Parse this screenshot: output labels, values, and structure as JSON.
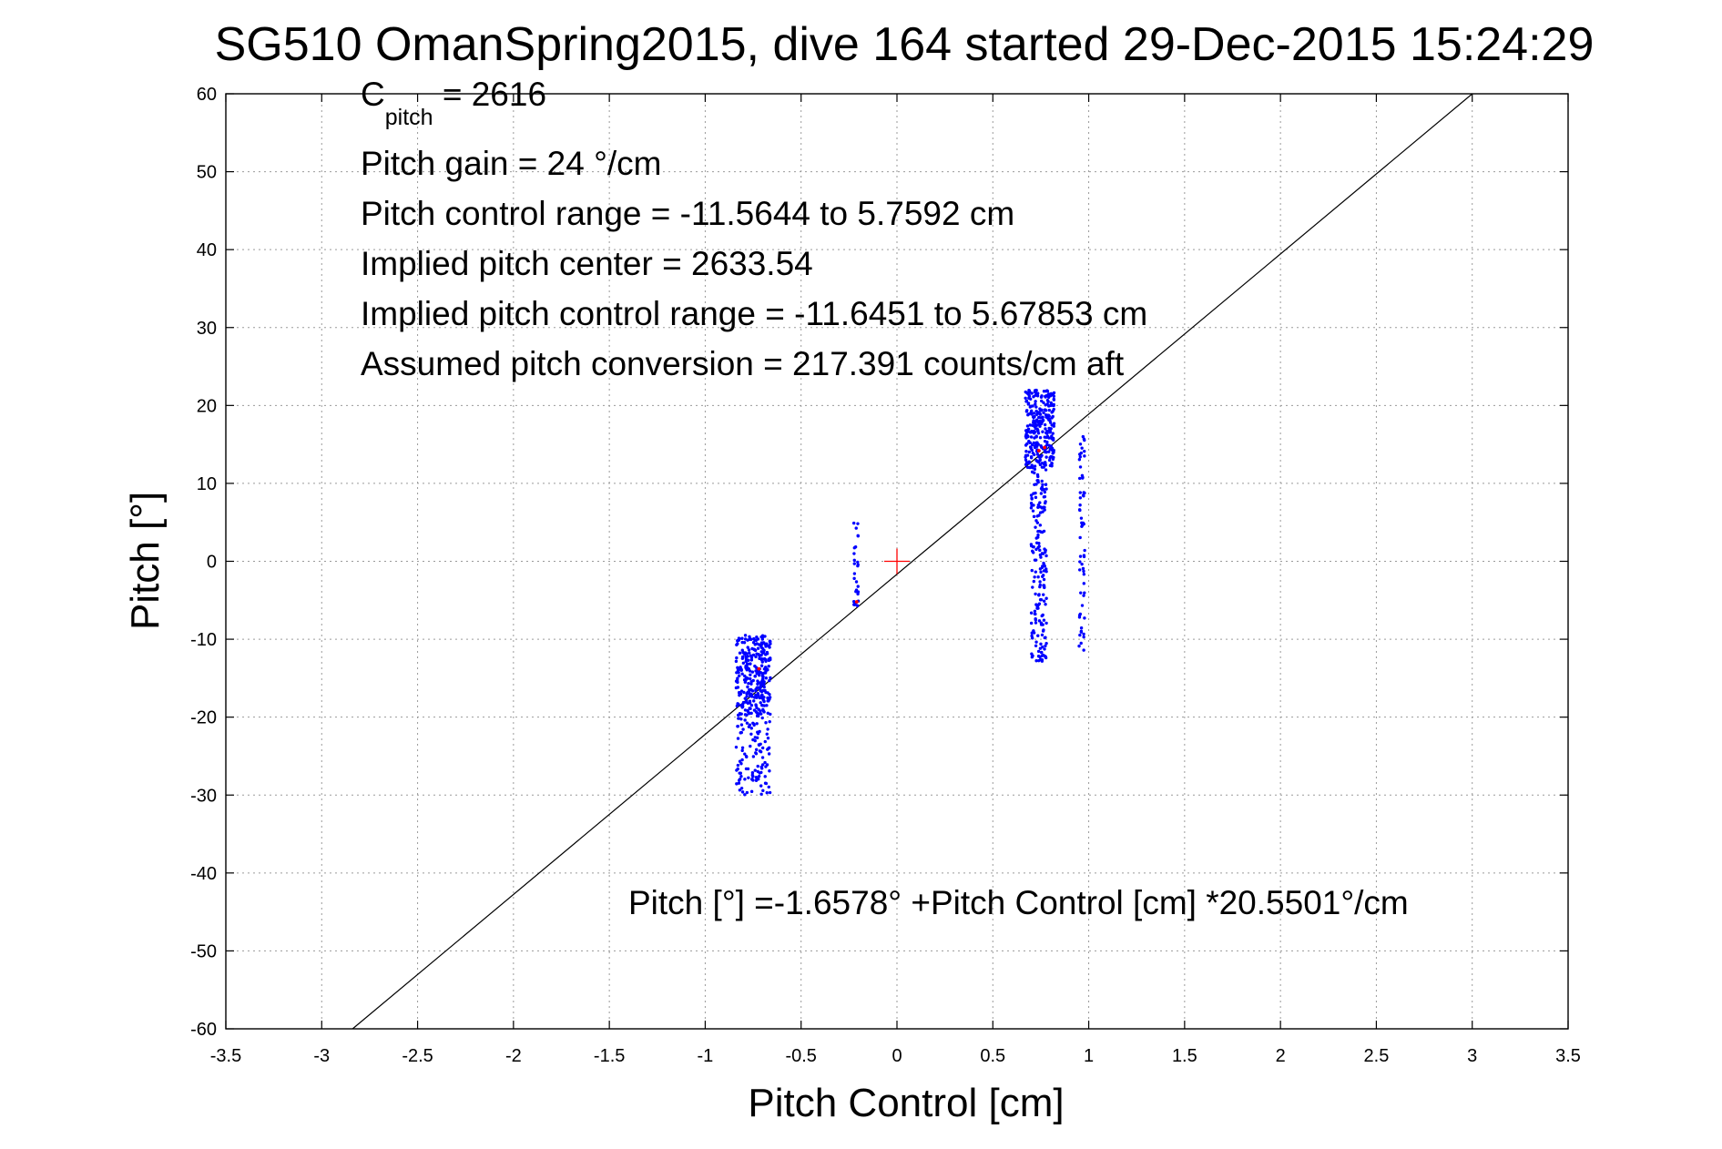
{
  "chart_data": {
    "type": "scatter",
    "title": "SG510 OmanSpring2015, dive 164 started 29-Dec-2015 15:24:29",
    "xlabel": "Pitch Control [cm]",
    "ylabel": "Pitch [°]",
    "xlim": [
      -3.5,
      3.5
    ],
    "ylim": [
      -60,
      60
    ],
    "xticks": [
      -3.5,
      -3,
      -2.5,
      -2,
      -1.5,
      -1,
      -0.5,
      0,
      0.5,
      1,
      1.5,
      2,
      2.5,
      3,
      3.5
    ],
    "xtick_labels": [
      "-3.5",
      "-3",
      "-2.5",
      "-2",
      "-1.5",
      "-1",
      "-0.5",
      "0",
      "0.5",
      "1",
      "1.5",
      "2",
      "2.5",
      "3",
      "3.5"
    ],
    "yticks": [
      60,
      50,
      40,
      30,
      20,
      10,
      0,
      -10,
      -20,
      -30,
      -40,
      -50,
      -60
    ],
    "ytick_labels": [
      "60",
      "50",
      "40",
      "30",
      "20",
      "10",
      "0",
      "-10",
      "-20",
      "-30",
      "-40",
      "-50",
      "-60"
    ],
    "grid": true,
    "colors": {
      "points": "#0000ff",
      "highlight": "#ff0000",
      "fit": "#000000"
    },
    "annotations": {
      "c_pitch_main": "C",
      "c_pitch_sub": "pitch",
      "c_pitch_value": " = 2616",
      "pitch_gain": "Pitch gain = 24 °/cm",
      "control_range": "Pitch control range = -11.5644 to 5.7592 cm",
      "implied_center": "Implied pitch center = 2633.54",
      "implied_range": "Implied pitch control range = -11.6451 to 5.67853 cm",
      "conversion": "Assumed pitch conversion = 217.391 counts/cm aft",
      "fit_equation": "Pitch [°] =-1.6578° +Pitch Control [cm] *20.5501°/cm"
    },
    "fit_line": {
      "intercept": -1.6578,
      "slope": 20.5501
    },
    "center_marker": {
      "x": 0,
      "y": 0
    },
    "series": [
      {
        "clusters": [
          {
            "x_range": [
              -0.84,
              -0.66
            ],
            "y_range": [
              -20,
              -9.5
            ],
            "count": 300
          },
          {
            "x_range": [
              -0.84,
              -0.66
            ],
            "y_range": [
              -30,
              -20
            ],
            "count": 110
          },
          {
            "x_range": [
              -0.225,
              -0.2
            ],
            "y_range": [
              -6,
              5
            ],
            "count": 28
          },
          {
            "x_range": [
              0.67,
              0.82
            ],
            "y_range": [
              12,
              22
            ],
            "count": 280
          },
          {
            "x_range": [
              0.7,
              0.78
            ],
            "y_range": [
              -13,
              12
            ],
            "count": 180
          },
          {
            "x_range": [
              0.95,
              0.98
            ],
            "y_range": [
              -11.5,
              16
            ],
            "count": 60
          }
        ]
      }
    ],
    "highlight_points": [
      {
        "x": -0.21,
        "y": -5.2
      },
      {
        "x": 0.74,
        "y": 14.2
      },
      {
        "x": 0.77,
        "y": 14.6
      },
      {
        "x": -0.72,
        "y": -13.8
      }
    ]
  }
}
